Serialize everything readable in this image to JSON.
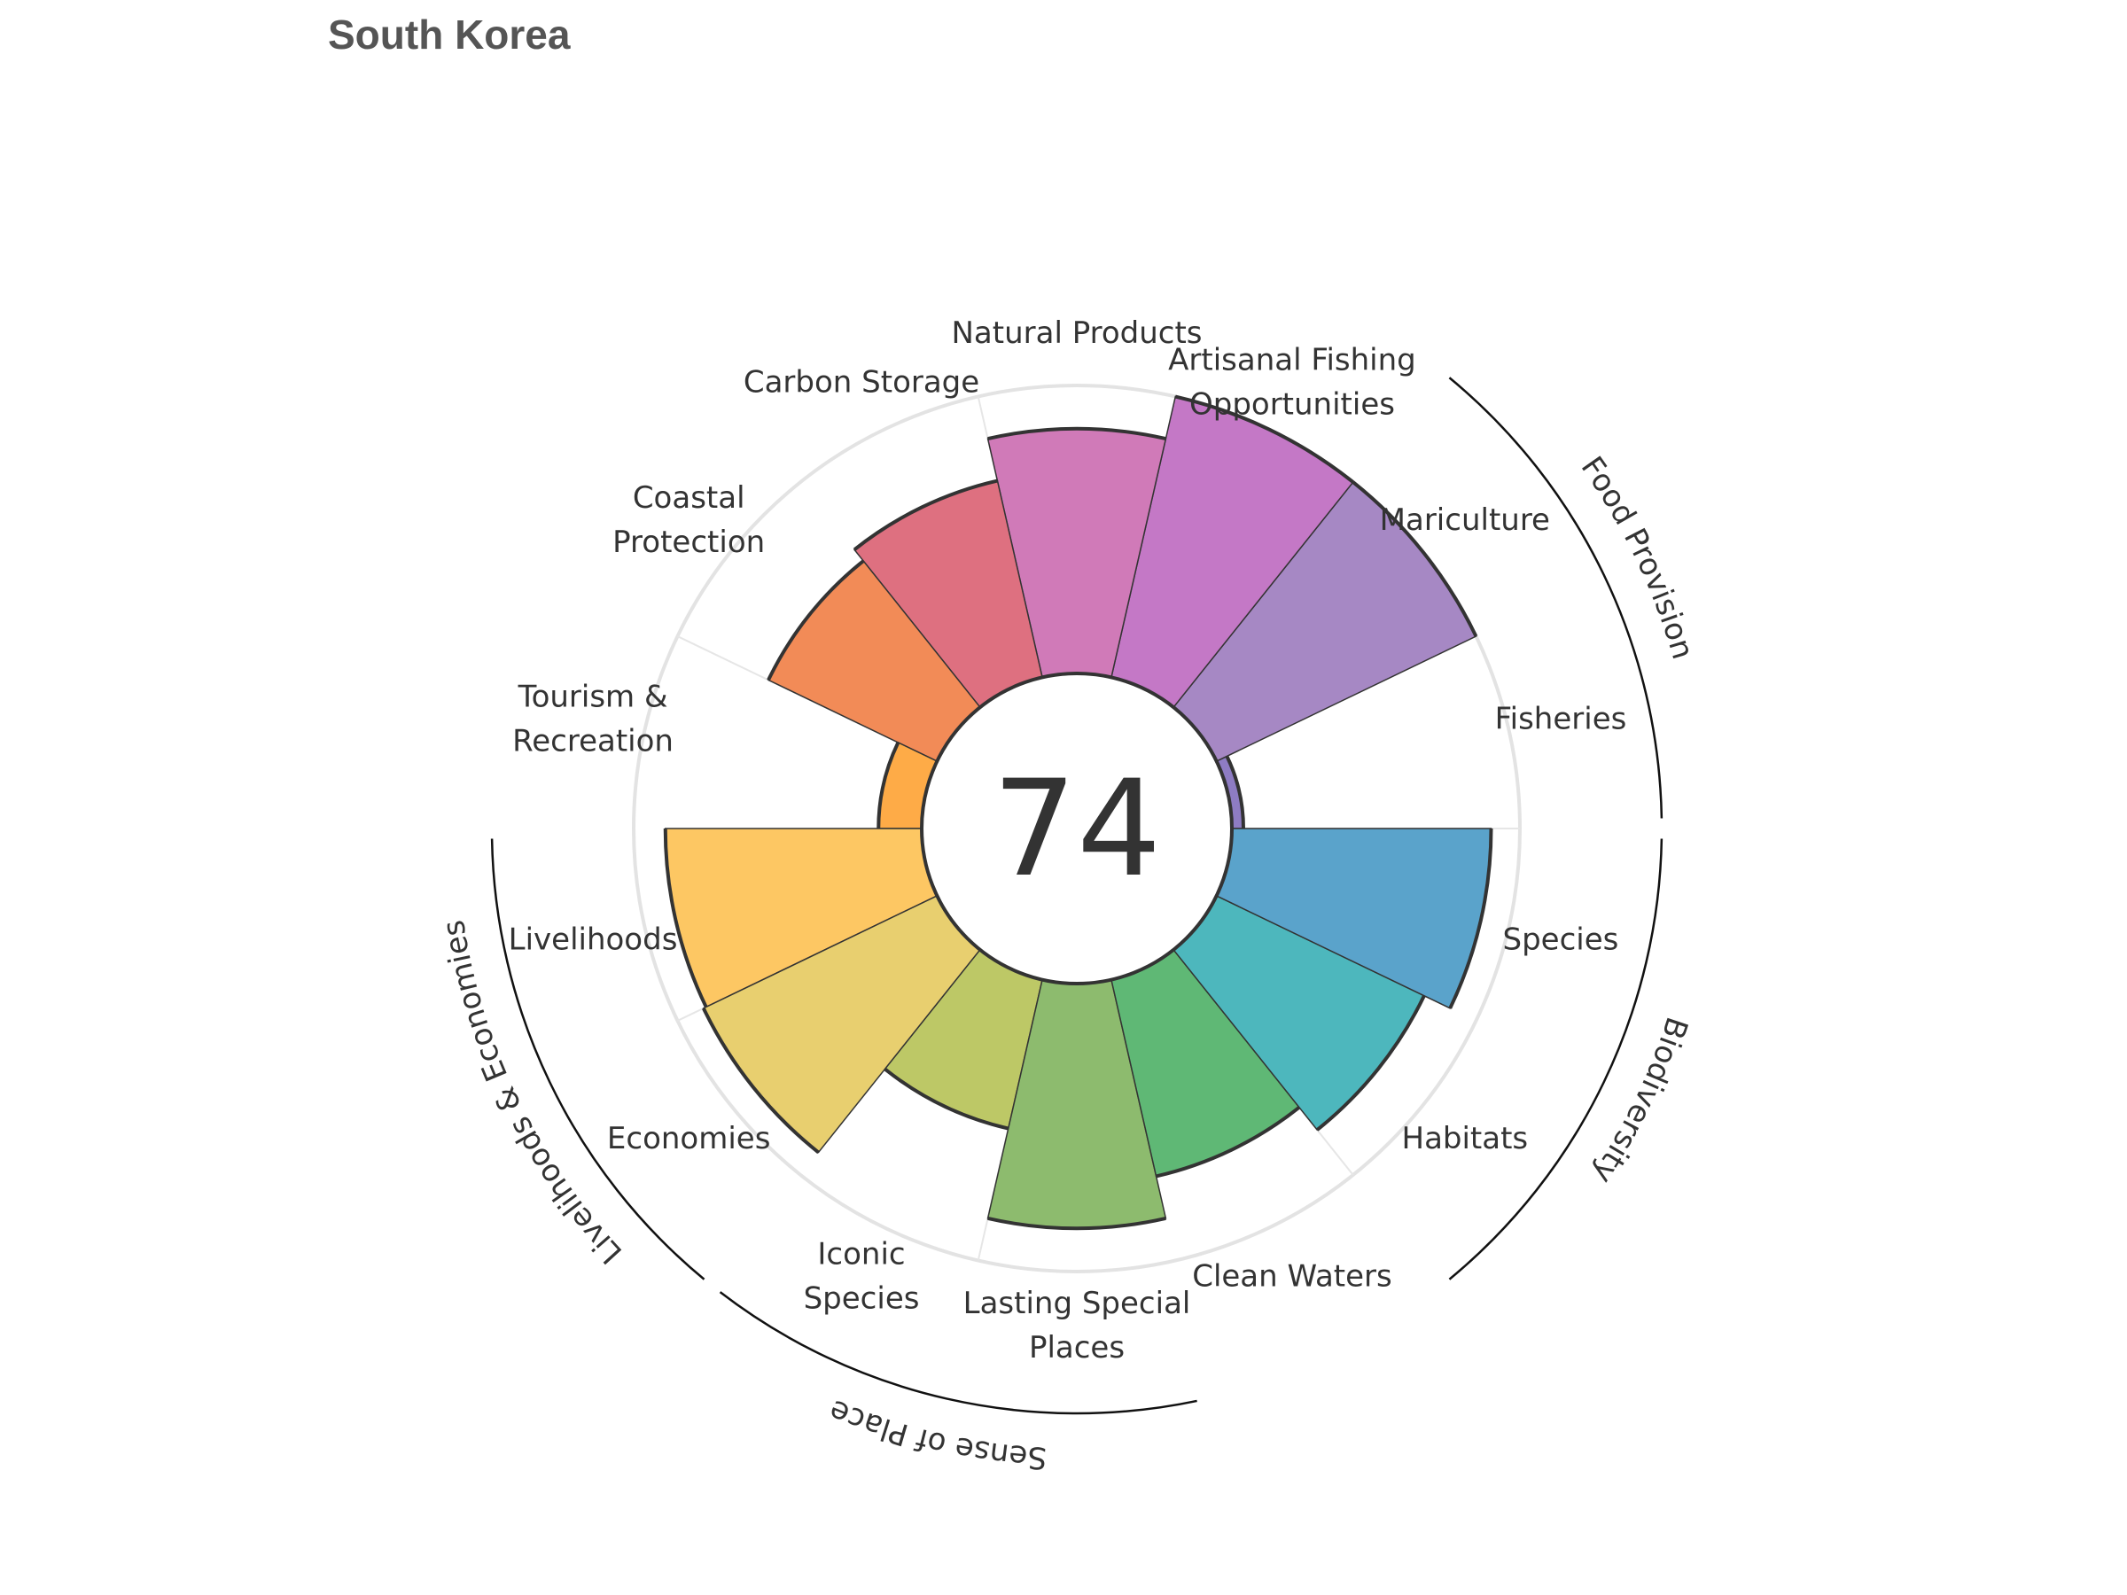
{
  "chart_data": {
    "type": "polar-bar",
    "title": "South Korea",
    "center_value": "74",
    "rmax": 100,
    "inner_radius_fraction": 0.35,
    "segments": [
      {
        "name": "Fisheries",
        "label": [
          "Fisheries"
        ],
        "value": 4,
        "color": "#8e7cc3"
      },
      {
        "name": "Mariculture",
        "label": [
          "Mariculture"
        ],
        "value": 100,
        "color": "#a688c4"
      },
      {
        "name": "Artisanal Fishing Opportunities",
        "label": [
          "Artisanal Fishing",
          "Opportunities"
        ],
        "value": 100,
        "color": "#c478c6"
      },
      {
        "name": "Natural Products",
        "label": [
          "Natural Products"
        ],
        "value": 85,
        "color": "#d07ab8"
      },
      {
        "name": "Carbon Storage",
        "label": [
          "Carbon Storage"
        ],
        "value": 70,
        "color": "#de7080"
      },
      {
        "name": "Coastal Protection",
        "label": [
          "Coastal",
          "Protection"
        ],
        "value": 65,
        "color": "#f28b57"
      },
      {
        "name": "Tourism & Recreation",
        "label": [
          "Tourism &",
          "Recreation"
        ],
        "value": 15,
        "color": "#feab47"
      },
      {
        "name": "Livelihoods",
        "label": [
          "Livelihoods"
        ],
        "value": 89,
        "color": "#fdc763"
      },
      {
        "name": "Economies",
        "label": [
          "Economies"
        ],
        "value": 90,
        "color": "#e8cf6f"
      },
      {
        "name": "Iconic Species",
        "label": [
          "Iconic",
          "Species"
        ],
        "value": 53,
        "color": "#bdc866"
      },
      {
        "name": "Lasting Special Places",
        "label": [
          "Lasting Special",
          "Places"
        ],
        "value": 85,
        "color": "#8dbb6e"
      },
      {
        "name": "Clean Waters",
        "label": [
          "Clean Waters"
        ],
        "value": 70,
        "color": "#5fb875"
      },
      {
        "name": "Habitats",
        "label": [
          "Habitats"
        ],
        "value": 80,
        "color": "#4db7bd"
      },
      {
        "name": "Species",
        "label": [
          "Species"
        ],
        "value": 90,
        "color": "#5aa3cb"
      }
    ],
    "groups": [
      {
        "name": "Food Provision",
        "segments": [
          "Fisheries",
          "Mariculture"
        ]
      },
      {
        "name": "Biodiversity",
        "segments": [
          "Species",
          "Habitats"
        ]
      },
      {
        "name": "Sense of Place",
        "segments": [
          "Iconic Species",
          "Lasting Special Places"
        ]
      },
      {
        "name": "Livelihoods & Economies",
        "segments": [
          "Livelihoods",
          "Economies"
        ]
      }
    ]
  }
}
